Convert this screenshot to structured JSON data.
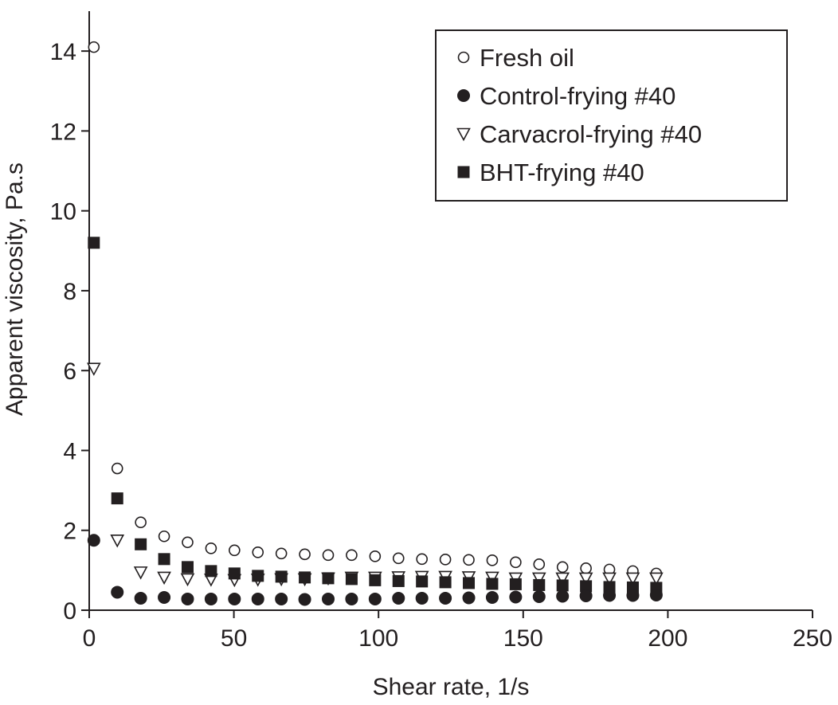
{
  "chart_data": {
    "type": "scatter",
    "title": "",
    "xlabel": "Shear rate, 1/s",
    "ylabel": "Apparent viscosity, Pa.s",
    "xlim": [
      0,
      250
    ],
    "ylim": [
      0,
      15
    ],
    "xticks": [
      0,
      50,
      100,
      150,
      200,
      250
    ],
    "yticks": [
      0,
      2,
      4,
      6,
      8,
      10,
      12,
      14
    ],
    "grid": false,
    "legend_position": "top-right",
    "x": [
      1.6,
      9.7,
      17.8,
      25.9,
      34.0,
      42.1,
      50.2,
      58.3,
      66.4,
      74.5,
      82.6,
      90.7,
      98.8,
      106.9,
      115.0,
      123.1,
      131.2,
      139.3,
      147.4,
      155.5,
      163.6,
      171.7,
      179.8,
      187.9,
      196.0
    ],
    "series": [
      {
        "name": "Fresh oil",
        "marker": "open-circle",
        "color": "#231f20",
        "values": [
          14.1,
          3.55,
          2.2,
          1.85,
          1.7,
          1.55,
          1.5,
          1.45,
          1.42,
          1.4,
          1.38,
          1.38,
          1.35,
          1.3,
          1.28,
          1.27,
          1.26,
          1.25,
          1.2,
          1.15,
          1.08,
          1.05,
          1.02,
          0.98,
          0.92
        ]
      },
      {
        "name": "Control-frying #40",
        "marker": "filled-circle",
        "color": "#231f20",
        "values": [
          1.75,
          0.45,
          0.3,
          0.32,
          0.28,
          0.28,
          0.28,
          0.28,
          0.28,
          0.27,
          0.28,
          0.28,
          0.28,
          0.3,
          0.3,
          0.3,
          0.31,
          0.32,
          0.33,
          0.34,
          0.35,
          0.36,
          0.37,
          0.37,
          0.38
        ]
      },
      {
        "name": "Carvacrol-frying #40",
        "marker": "open-triangle-down",
        "color": "#231f20",
        "values": [
          6.05,
          1.75,
          0.95,
          0.82,
          0.78,
          0.77,
          0.76,
          0.77,
          0.78,
          0.78,
          0.8,
          0.82,
          0.82,
          0.83,
          0.84,
          0.84,
          0.83,
          0.82,
          0.8,
          0.8,
          0.8,
          0.8,
          0.8,
          0.8,
          0.8
        ]
      },
      {
        "name": "BHT-frying #40",
        "marker": "filled-square",
        "color": "#231f20",
        "values": [
          9.2,
          2.8,
          1.65,
          1.28,
          1.08,
          0.98,
          0.92,
          0.86,
          0.84,
          0.82,
          0.8,
          0.78,
          0.75,
          0.73,
          0.72,
          0.7,
          0.68,
          0.66,
          0.65,
          0.63,
          0.62,
          0.6,
          0.58,
          0.57,
          0.56
        ]
      }
    ]
  }
}
